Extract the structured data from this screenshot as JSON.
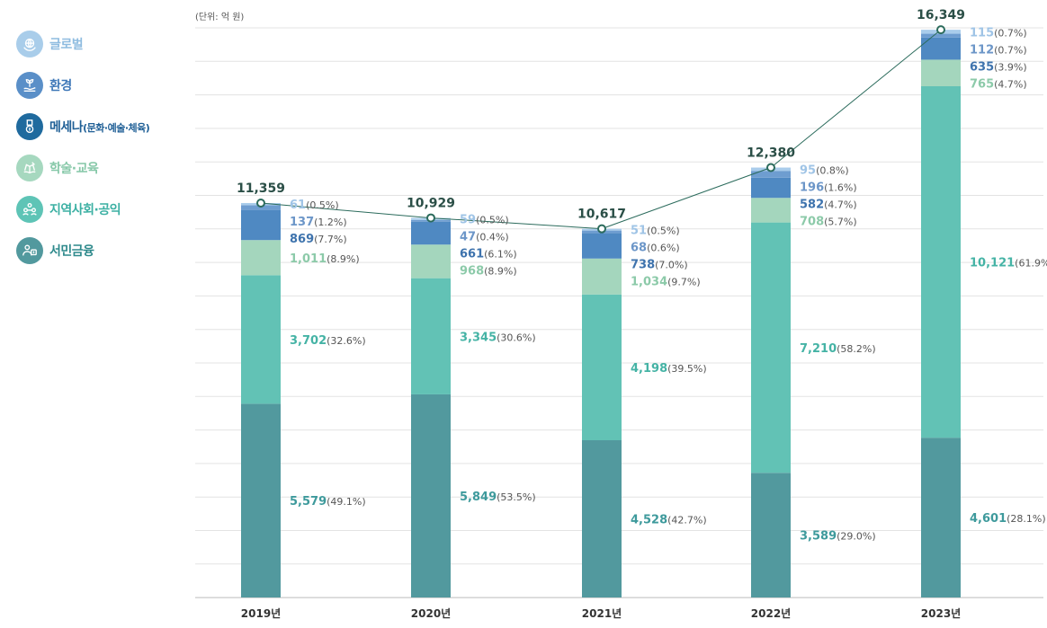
{
  "unit_note": "(단위: 억 원)",
  "legend": [
    {
      "label": "글로벌",
      "sub": "",
      "icon": "globe-hands-icon",
      "color": "#a9cdea",
      "text_color": "#8fbce0"
    },
    {
      "label": "환경",
      "sub": "",
      "icon": "plant-hand-icon",
      "color": "#5a8fc8",
      "text_color": "#3f78b8"
    },
    {
      "label": "메세나",
      "sub": "(문화·예술·체육)",
      "icon": "medal-icon",
      "color": "#1f6a9e",
      "text_color": "#1f5f96"
    },
    {
      "label": "학술·교육",
      "sub": "",
      "icon": "book-icon",
      "color": "#a6d8bf",
      "text_color": "#86c8a8"
    },
    {
      "label": "지역사회·공익",
      "sub": "",
      "icon": "community-icon",
      "color": "#5ec4b6",
      "text_color": "#3bb0a3"
    },
    {
      "label": "서민금융",
      "sub": "",
      "icon": "people-money-icon",
      "color": "#52999e",
      "text_color": "#2f8a8c"
    }
  ],
  "chart_data": {
    "type": "bar",
    "stacked": true,
    "categories": [
      "2019년",
      "2020년",
      "2021년",
      "2022년",
      "2023년"
    ],
    "series": [
      {
        "name": "서민금융",
        "color": "#52999e",
        "label_color": "#3e9a9c",
        "values": [
          5579,
          5849,
          4528,
          3589,
          4601
        ],
        "labels": [
          "5,579",
          "5,849",
          "4,528",
          "3,589",
          "4,601"
        ],
        "percents": [
          "(49.1%)",
          "(53.5%)",
          "(42.7%)",
          "(29.0%)",
          "(28.1%)"
        ]
      },
      {
        "name": "지역사회·공익",
        "color": "#62c2b5",
        "label_color": "#45b3a5",
        "values": [
          3702,
          3345,
          4198,
          7210,
          10121
        ],
        "labels": [
          "3,702",
          "3,345",
          "4,198",
          "7,210",
          "10,121"
        ],
        "percents": [
          "(32.6%)",
          "(30.6%)",
          "(39.5%)",
          "(58.2%)",
          "(61.9%)"
        ]
      },
      {
        "name": "학술·교육",
        "color": "#a4d6bd",
        "label_color": "#8ccaa9",
        "values": [
          1011,
          968,
          1034,
          708,
          765
        ],
        "labels": [
          "1,011",
          "968",
          "1,034",
          "708",
          "765"
        ],
        "percents": [
          "(8.9%)",
          "(8.9%)",
          "(9.7%)",
          "(5.7%)",
          "(4.7%)"
        ]
      },
      {
        "name": "메세나",
        "color": "#4f89c2",
        "label_color": "#3e73ad",
        "values": [
          869,
          661,
          738,
          582,
          635
        ],
        "labels": [
          "869",
          "661",
          "738",
          "582",
          "635"
        ],
        "percents": [
          "(7.7%)",
          "(6.1%)",
          "(7.0%)",
          "(4.7%)",
          "(3.9%)"
        ]
      },
      {
        "name": "환경",
        "color": "#6e9dd0",
        "label_color": "#6c96c8",
        "values": [
          137,
          47,
          68,
          196,
          112
        ],
        "labels": [
          "137",
          "47",
          "68",
          "196",
          "112"
        ],
        "percents": [
          "(1.2%)",
          "(0.4%)",
          "(0.6%)",
          "(1.6%)",
          "(0.7%)"
        ]
      },
      {
        "name": "글로벌",
        "color": "#a9cceb",
        "label_color": "#9fc4e6",
        "values": [
          61,
          59,
          51,
          95,
          115
        ],
        "labels": [
          "61",
          "59",
          "51",
          "95",
          "115"
        ],
        "percents": [
          "(0.5%)",
          "(0.5%)",
          "(0.5%)",
          "(0.8%)",
          "(0.7%)"
        ]
      }
    ],
    "totals": [
      11359,
      10929,
      10617,
      12380,
      16349
    ],
    "total_labels": [
      "11,359",
      "10,929",
      "10,617",
      "12,380",
      "16,349"
    ],
    "ylim": [
      0,
      17000
    ],
    "grid": true,
    "line_color": "#2b6b5c"
  }
}
